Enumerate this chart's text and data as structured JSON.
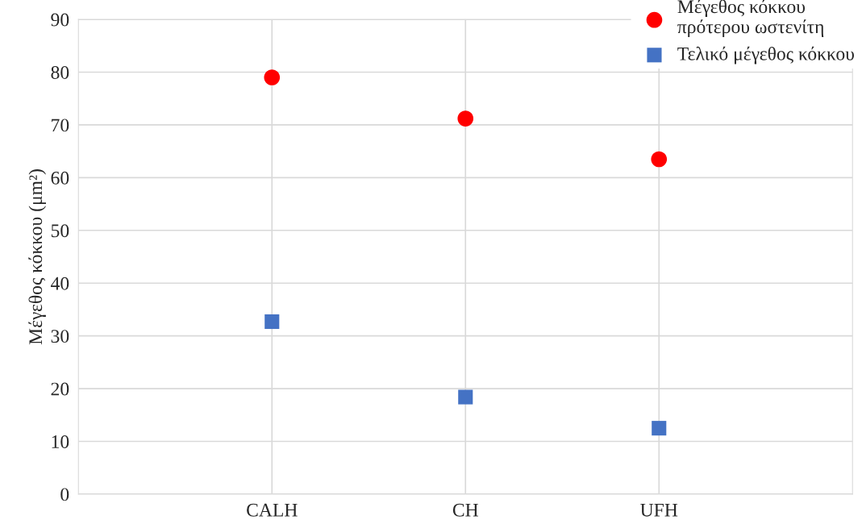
{
  "chart_data": {
    "type": "scatter",
    "ylabel": "Μέγεθος κόκκου (μm²)",
    "categories": [
      "CALH",
      "CH",
      "UFH"
    ],
    "series": [
      {
        "name": "Μέγεθος κόκκου\nπρότερου ωστενίτη",
        "color": "#ff0000",
        "marker": "circle",
        "values": [
          79.0,
          71.2,
          63.5
        ]
      },
      {
        "name": "Τελικό μέγεθος κόκκου",
        "color": "#4472c4",
        "marker": "square",
        "values": [
          32.7,
          18.4,
          12.5
        ]
      }
    ],
    "ylim": [
      0,
      90
    ],
    "yticks": [
      0,
      10,
      20,
      30,
      40,
      50,
      60,
      70,
      80,
      90
    ],
    "grid": true,
    "legend": "top right"
  }
}
